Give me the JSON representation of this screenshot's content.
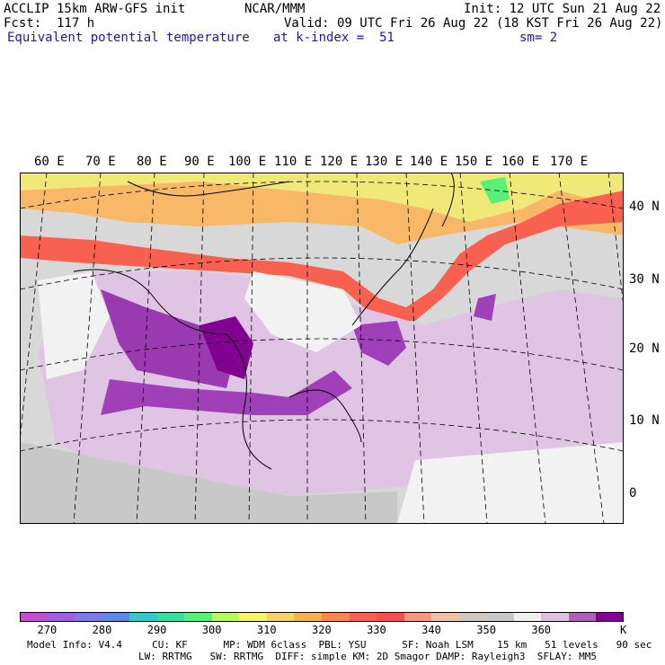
{
  "header": {
    "line1_left": "ACCLIP 15km ARW-GFS init",
    "line1_center": "NCAR/MMM",
    "line1_right": "Init: 12 UTC Sun 21 Aug 22",
    "line2_left": "Fcst:  117 h",
    "line2_right": "Valid: 09 UTC Fri 26 Aug 22 (18 KST Fri 26 Aug 22)",
    "line3_left": "Equivalent potential temperature",
    "line3_center": "at k-index =  51",
    "line3_right": "sm= 2"
  },
  "map": {
    "lon_labels": [
      "60 E",
      "70 E",
      "80 E",
      "90 E",
      "100 E",
      "110 E",
      "120 E",
      "130 E",
      "140 E",
      "150 E",
      "160 E",
      "170 E"
    ],
    "lat_labels": [
      "40 N",
      "30 N",
      "20 N",
      "10 N",
      "0"
    ]
  },
  "colorbar": {
    "colors": [
      "#c050d0",
      "#a060d8",
      "#7e7ae0",
      "#5c8ce0",
      "#30c8c8",
      "#38e0a0",
      "#58f078",
      "#b8f860",
      "#f8f070",
      "#f8d070",
      "#f8b058",
      "#f88850",
      "#f86050",
      "#f85048",
      "#f89880",
      "#f0c0a8",
      "#d0c8c0",
      "#c8c8c8",
      "#f0f0f0",
      "#e0c0e0",
      "#b060b8",
      "#800090"
    ],
    "labels": [
      "270",
      "280",
      "290",
      "300",
      "310",
      "320",
      "330",
      "340",
      "350",
      "360"
    ],
    "unit": "K"
  },
  "footer": {
    "line1": "Model Info: V4.4     CU: KF      MP: WDM 6class  PBL: YSU      SF: Noah LSM    15 km   51 levels   90 sec",
    "line2": "LW: RRTMG   SW: RRTMG  DIFF: simple KM: 2D Smagor DAMP: Rayleigh3  SFLAY: MM5"
  }
}
